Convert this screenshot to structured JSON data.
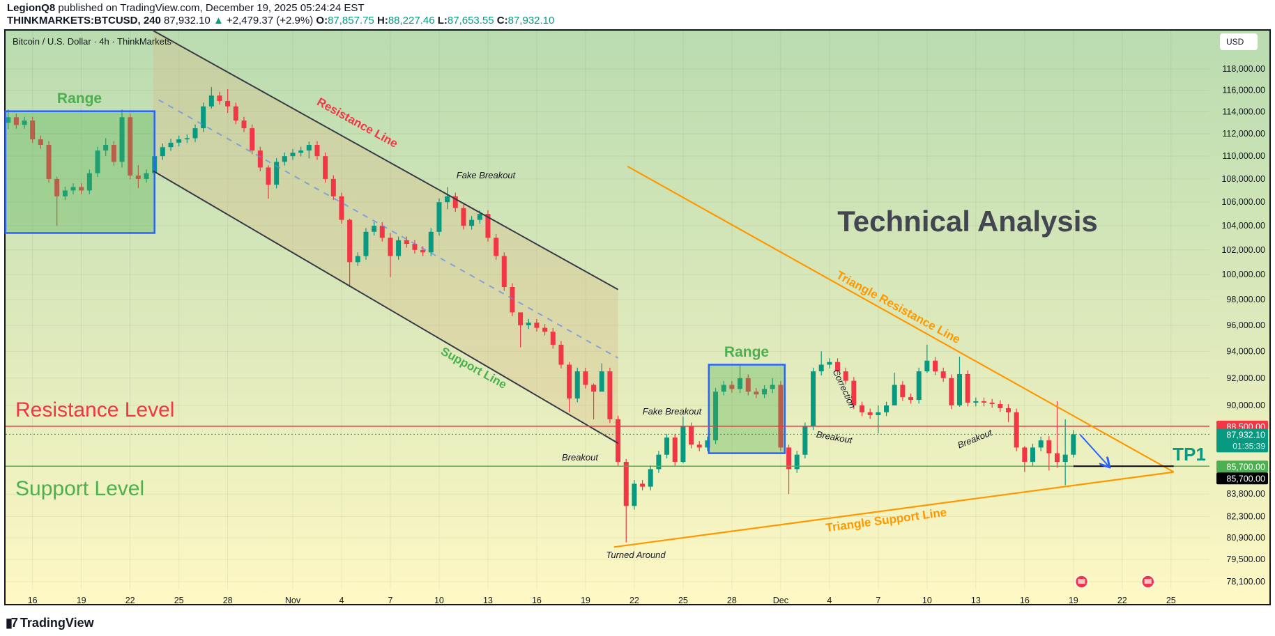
{
  "header": {
    "publisher": "LegionQ8",
    "published_text": "published on TradingView.com, December 19, 2025 05:24:24 EST",
    "symbol": "THINKMARKETS:BTCUSD, 240",
    "last": "87,932.10",
    "change": "+2,479.37 (+2.9%)",
    "o_label": "O:",
    "o": "87,857.75",
    "h_label": "H:",
    "h": "88,227.46",
    "l_label": "L:",
    "l": "87,653.55",
    "c_label": "C:",
    "c": "87,932.10"
  },
  "legend_title": "Bitcoin / U.S. Dollar · 4h · ThinkMarkets",
  "currency_button": "USD",
  "footer_logo": "TradingView",
  "colors": {
    "up": "#089981",
    "down": "#f23645",
    "resistance": "#f23645",
    "support": "#4caf50",
    "triangle": "#ff9800",
    "channel": "#363a45",
    "range_box": "#2962ff",
    "tp": "#089981"
  },
  "chart_data": {
    "type": "candlestick",
    "interval": "240",
    "y_scale": "log",
    "ylim": [
      76500,
      121500
    ],
    "xlim": [
      "2025-10-14",
      "2025-12-28"
    ],
    "grid": true,
    "price_ticks": [
      {
        "value": 118000,
        "label": "118,000.00"
      },
      {
        "value": 116000,
        "label": "116,000.00"
      },
      {
        "value": 114000,
        "label": "114,000.00"
      },
      {
        "value": 112000,
        "label": "112,000.00"
      },
      {
        "value": 110000,
        "label": "110,000.00"
      },
      {
        "value": 108000,
        "label": "108,000.00"
      },
      {
        "value": 106000,
        "label": "106,000.00"
      },
      {
        "value": 104000,
        "label": "104,000.00"
      },
      {
        "value": 102000,
        "label": "102,000.00"
      },
      {
        "value": 100000,
        "label": "100,000.00"
      },
      {
        "value": 98000,
        "label": "98,000.00"
      },
      {
        "value": 96000,
        "label": "96,000.00"
      },
      {
        "value": 94000,
        "label": "94,000.00"
      },
      {
        "value": 92000,
        "label": "92,000.00"
      },
      {
        "value": 90000,
        "label": "90,000.00"
      },
      {
        "value": 83800,
        "label": "83,800.00"
      },
      {
        "value": 82300,
        "label": "82,300.00"
      },
      {
        "value": 80900,
        "label": "80,900.00"
      },
      {
        "value": 79500,
        "label": "79,500.00"
      },
      {
        "value": 78100,
        "label": "78,100.00"
      }
    ],
    "time_ticks": [
      {
        "date": "2025-10-16",
        "label": "16"
      },
      {
        "date": "2025-10-19",
        "label": "19"
      },
      {
        "date": "2025-10-22",
        "label": "22"
      },
      {
        "date": "2025-10-25",
        "label": "25"
      },
      {
        "date": "2025-10-28",
        "label": "28"
      },
      {
        "date": "2025-11-01",
        "label": "Nov"
      },
      {
        "date": "2025-11-04",
        "label": "4"
      },
      {
        "date": "2025-11-07",
        "label": "7"
      },
      {
        "date": "2025-11-10",
        "label": "10"
      },
      {
        "date": "2025-11-13",
        "label": "13"
      },
      {
        "date": "2025-11-16",
        "label": "16"
      },
      {
        "date": "2025-11-19",
        "label": "19"
      },
      {
        "date": "2025-11-22",
        "label": "22"
      },
      {
        "date": "2025-11-25",
        "label": "25"
      },
      {
        "date": "2025-11-28",
        "label": "28"
      },
      {
        "date": "2025-12-01",
        "label": "Dec"
      },
      {
        "date": "2025-12-04",
        "label": "4"
      },
      {
        "date": "2025-12-07",
        "label": "7"
      },
      {
        "date": "2025-12-10",
        "label": "10"
      },
      {
        "date": "2025-12-13",
        "label": "13"
      },
      {
        "date": "2025-12-16",
        "label": "16"
      },
      {
        "date": "2025-12-19",
        "label": "19"
      },
      {
        "date": "2025-12-22",
        "label": "22"
      },
      {
        "date": "2025-12-25",
        "label": "25"
      }
    ],
    "price_badges": [
      {
        "value": 88500,
        "label": "88,500.00",
        "color": "#f23645"
      },
      {
        "value": 87932.1,
        "label": "87,932.10",
        "sub": "01:35:39",
        "color": "#089981"
      },
      {
        "value": 85700,
        "label": "85,700.00",
        "color": "#4caf50"
      },
      {
        "value": 85700,
        "label": "85,700.00",
        "color": "#000000"
      }
    ],
    "candles_format": [
      "time",
      "close",
      "high",
      "low"
    ],
    "first_open": 113000,
    "candles": [
      [
        "2025-10-14 12:00",
        113500,
        114200,
        112400
      ],
      [
        "2025-10-15 00:00",
        112800
      ],
      [
        "2025-10-15 12:00",
        113200
      ],
      [
        "2025-10-16 00:00",
        111500
      ],
      [
        "2025-10-16 12:00",
        111000
      ],
      [
        "2025-10-17 00:00",
        108000
      ],
      [
        "2025-10-17 12:00",
        106500,
        108200,
        104000
      ],
      [
        "2025-10-18 00:00",
        107000
      ],
      [
        "2025-10-18 12:00",
        107300
      ],
      [
        "2025-10-19 00:00",
        107000
      ],
      [
        "2025-10-19 12:00",
        108500
      ],
      [
        "2025-10-20 00:00",
        110500
      ],
      [
        "2025-10-20 12:00",
        111000,
        111600,
        110000
      ],
      [
        "2025-10-21 00:00",
        109500
      ],
      [
        "2025-10-21 12:00",
        113500,
        114200,
        109000
      ],
      [
        "2025-10-22 00:00",
        108300
      ],
      [
        "2025-10-22 12:00",
        108000,
        109200,
        107200
      ],
      [
        "2025-10-23 00:00",
        108500
      ],
      [
        "2025-10-23 12:00",
        110000
      ],
      [
        "2025-10-24 00:00",
        110800
      ],
      [
        "2025-10-24 12:00",
        111200
      ],
      [
        "2025-10-25 00:00",
        111500
      ],
      [
        "2025-10-25 12:00",
        111600
      ],
      [
        "2025-10-26 00:00",
        112500
      ],
      [
        "2025-10-26 12:00",
        114500
      ],
      [
        "2025-10-27 00:00",
        115500,
        116300,
        114300
      ],
      [
        "2025-10-27 12:00",
        115000
      ],
      [
        "2025-10-28 00:00",
        114500,
        116100,
        113900
      ],
      [
        "2025-10-28 12:00",
        113200
      ],
      [
        "2025-10-29 00:00",
        112500
      ],
      [
        "2025-10-29 12:00",
        110500
      ],
      [
        "2025-10-30 00:00",
        109000
      ],
      [
        "2025-10-30 12:00",
        107500,
        109200,
        106300
      ],
      [
        "2025-10-31 00:00",
        109500
      ],
      [
        "2025-10-31 12:00",
        110000
      ],
      [
        "2025-11-01 00:00",
        110300
      ],
      [
        "2025-11-01 12:00",
        110500
      ],
      [
        "2025-11-02 00:00",
        111000,
        111300,
        109800
      ],
      [
        "2025-11-02 12:00",
        110000
      ],
      [
        "2025-11-03 00:00",
        108000
      ],
      [
        "2025-11-03 12:00",
        106500
      ],
      [
        "2025-11-04 00:00",
        104500
      ],
      [
        "2025-11-04 12:00",
        101000,
        104600,
        99000
      ],
      [
        "2025-11-05 00:00",
        101500
      ],
      [
        "2025-11-05 12:00",
        103500
      ],
      [
        "2025-11-06 00:00",
        104000
      ],
      [
        "2025-11-06 12:00",
        103000
      ],
      [
        "2025-11-07 00:00",
        101500,
        103400,
        99800
      ],
      [
        "2025-11-07 12:00",
        102800
      ],
      [
        "2025-11-08 00:00",
        102500
      ],
      [
        "2025-11-08 12:00",
        102000
      ],
      [
        "2025-11-09 00:00",
        101800
      ],
      [
        "2025-11-09 12:00",
        103500
      ],
      [
        "2025-11-10 00:00",
        106000
      ],
      [
        "2025-11-10 12:00",
        106500,
        107300,
        105400
      ],
      [
        "2025-11-11 00:00",
        105500
      ],
      [
        "2025-11-11 12:00",
        104000
      ],
      [
        "2025-11-12 00:00",
        104500
      ],
      [
        "2025-11-12 12:00",
        105000
      ],
      [
        "2025-11-13 00:00",
        103000
      ],
      [
        "2025-11-13 12:00",
        101500
      ],
      [
        "2025-11-14 00:00",
        99000
      ],
      [
        "2025-11-14 12:00",
        97000
      ],
      [
        "2025-11-15 00:00",
        96000,
        96800,
        94300
      ],
      [
        "2025-11-15 12:00",
        96200
      ],
      [
        "2025-11-16 00:00",
        95800
      ],
      [
        "2025-11-16 12:00",
        95500
      ],
      [
        "2025-11-17 00:00",
        94500
      ],
      [
        "2025-11-17 12:00",
        93000
      ],
      [
        "2025-11-18 00:00",
        90500,
        93200,
        89500
      ],
      [
        "2025-11-18 12:00",
        92500
      ],
      [
        "2025-11-19 00:00",
        91500
      ],
      [
        "2025-11-19 12:00",
        91000,
        91600,
        89000
      ],
      [
        "2025-11-20 00:00",
        92500,
        93100,
        91800
      ],
      [
        "2025-11-20 12:00",
        89000
      ],
      [
        "2025-11-21 00:00",
        86000
      ],
      [
        "2025-11-21 12:00",
        83000,
        86200,
        80600
      ],
      [
        "2025-11-22 00:00",
        84500
      ],
      [
        "2025-11-22 12:00",
        84300
      ],
      [
        "2025-11-23 00:00",
        85500
      ],
      [
        "2025-11-23 12:00",
        86500
      ],
      [
        "2025-11-24 00:00",
        87700
      ],
      [
        "2025-11-24 12:00",
        86000
      ],
      [
        "2025-11-25 00:00",
        88500,
        89200,
        85900
      ],
      [
        "2025-11-25 12:00",
        87200
      ],
      [
        "2025-11-26 00:00",
        87000
      ],
      [
        "2025-11-26 12:00",
        87500
      ],
      [
        "2025-11-27 00:00",
        91000
      ],
      [
        "2025-11-27 12:00",
        91500
      ],
      [
        "2025-11-28 00:00",
        91200
      ],
      [
        "2025-11-28 12:00",
        92000,
        93000,
        90900
      ],
      [
        "2025-11-29 00:00",
        91000
      ],
      [
        "2025-11-29 12:00",
        90800
      ],
      [
        "2025-11-30 00:00",
        91200
      ],
      [
        "2025-11-30 12:00",
        91500,
        92000,
        90900
      ],
      [
        "2025-12-01 00:00",
        87000
      ],
      [
        "2025-12-01 12:00",
        85500,
        87200,
        83800
      ],
      [
        "2025-12-02 00:00",
        86500
      ],
      [
        "2025-12-02 12:00",
        88500
      ],
      [
        "2025-12-03 00:00",
        92500
      ],
      [
        "2025-12-03 12:00",
        93000,
        94000,
        92200
      ],
      [
        "2025-12-04 00:00",
        93200
      ],
      [
        "2025-12-04 12:00",
        92500
      ],
      [
        "2025-12-05 00:00",
        91800
      ],
      [
        "2025-12-05 12:00",
        90000
      ],
      [
        "2025-12-06 00:00",
        89500
      ],
      [
        "2025-12-06 12:00",
        89300
      ],
      [
        "2025-12-07 00:00",
        89500,
        90000,
        88000
      ],
      [
        "2025-12-07 12:00",
        90000
      ],
      [
        "2025-12-08 00:00",
        91500,
        92400,
        90600
      ],
      [
        "2025-12-08 12:00",
        90600
      ],
      [
        "2025-12-09 00:00",
        90400
      ],
      [
        "2025-12-09 12:00",
        92500
      ],
      [
        "2025-12-10 00:00",
        93300,
        94500,
        92400
      ],
      [
        "2025-12-10 12:00",
        92500
      ],
      [
        "2025-12-11 00:00",
        92000
      ],
      [
        "2025-12-11 12:00",
        90000
      ],
      [
        "2025-12-12 00:00",
        92300,
        93600,
        89900
      ],
      [
        "2025-12-12 12:00",
        90200
      ],
      [
        "2025-12-13 00:00",
        90300
      ],
      [
        "2025-12-13 12:00",
        90200
      ],
      [
        "2025-12-14 00:00",
        90100
      ],
      [
        "2025-12-14 12:00",
        89800
      ],
      [
        "2025-12-15 00:00",
        89500,
        90100,
        88800
      ],
      [
        "2025-12-15 12:00",
        87000
      ],
      [
        "2025-12-16 00:00",
        86000,
        87100,
        85300
      ],
      [
        "2025-12-16 12:00",
        87000
      ],
      [
        "2025-12-17 00:00",
        87500
      ],
      [
        "2025-12-17 12:00",
        86600,
        87800,
        85400
      ],
      [
        "2025-12-18 00:00",
        86000,
        90300,
        85600
      ],
      [
        "2025-12-18 12:00",
        86500,
        89000,
        84400
      ],
      [
        "2025-12-19 00:00",
        87932.1,
        88227.46,
        86300
      ]
    ],
    "horizontal_lines": [
      {
        "name": "resistance-level",
        "price": 88500,
        "color": "#f23645"
      },
      {
        "name": "support-level",
        "price": 85700,
        "color": "#4caf50"
      }
    ],
    "tp_line": {
      "price": 85700,
      "from": "2025-12-19",
      "to": "2025-12-25 04:00",
      "color": "#000000"
    },
    "range_boxes": [
      {
        "from": "2025-10-14 08:00",
        "to": "2025-10-23 12:00",
        "top": 114050,
        "bottom": 103400
      },
      {
        "from": "2025-11-26 14:00",
        "to": "2025-12-01 06:00",
        "top": 93000,
        "bottom": 86600
      }
    ],
    "channel": {
      "upper": [
        [
          "2025-10-23 10:00",
          121800
        ],
        [
          "2025-11-21 00:00",
          98800
        ]
      ],
      "lower": [
        [
          "2025-10-23 10:00",
          108700
        ],
        [
          "2025-11-21 00:00",
          87300
        ]
      ],
      "middle": [
        [
          "2025-10-23 18:00",
          115100
        ],
        [
          "2025-11-21 00:00",
          93500
        ]
      ]
    },
    "triangle": {
      "resistance": [
        [
          "2025-11-21 14:00",
          109100
        ],
        [
          "2025-12-25 04:00",
          85300
        ]
      ],
      "support": [
        [
          "2025-11-20 18:00",
          80300
        ],
        [
          "2025-12-25 04:00",
          85300
        ]
      ]
    },
    "projection_arrow": [
      [
        "2025-12-19 10:00",
        87900
      ],
      [
        "2025-12-21 04:00",
        85700
      ]
    ],
    "events": [
      "2025-12-19 12:00",
      "2025-12-23 14:00"
    ],
    "annotations": [
      {
        "text": "Range",
        "color": "#4caf50"
      },
      {
        "text": "Resistance Line",
        "color": "#f23645"
      },
      {
        "text": "Fake Breakout",
        "color": "#131722"
      },
      {
        "text": "Support Line",
        "color": "#4caf50"
      },
      {
        "text": "Technical Analysis",
        "color": "#434651"
      },
      {
        "text": "Triangle Resistance Line",
        "color": "#ff9800"
      },
      {
        "text": "Range",
        "color": "#4caf50"
      },
      {
        "text": "Fake Breakout",
        "color": "#131722"
      },
      {
        "text": "Correction",
        "color": "#131722"
      },
      {
        "text": "Breakout",
        "color": "#131722"
      },
      {
        "text": "Breakout",
        "color": "#131722"
      },
      {
        "text": "Breakout",
        "color": "#131722"
      },
      {
        "text": "Resistance Level",
        "color": "#f23645"
      },
      {
        "text": "Support Level",
        "color": "#4caf50"
      },
      {
        "text": "TP1",
        "color": "#089981"
      },
      {
        "text": "Triangle Support Line",
        "color": "#ff9800"
      },
      {
        "text": "Turned Around",
        "color": "#131722"
      }
    ]
  }
}
